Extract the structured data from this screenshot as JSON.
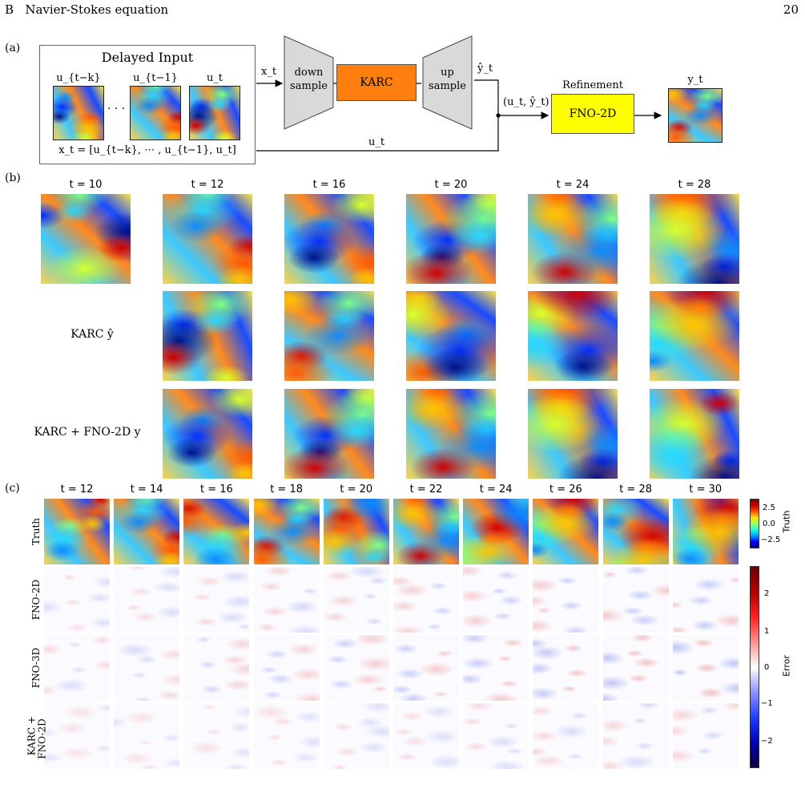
{
  "header": {
    "section": "B   Navier-Stokes equation",
    "page": "20"
  },
  "panel_a": {
    "label": "(a)",
    "delayed_input_title": "Delayed Input",
    "input_labels": [
      "u_{t−k}",
      "u_{t−1}",
      "u_t"
    ],
    "dots": "· · ·",
    "formula": "x_t = [u_{t−k}, ⋯ , u_{t−1}, u_t]",
    "xt_arrow_label": "x_t",
    "down_sample": [
      "down",
      "sample"
    ],
    "karc": "KARC",
    "up_sample": [
      "up",
      "sample"
    ],
    "yhat_label": "ŷ_t",
    "ut_label": "u_t",
    "pair_label": "(u_t, ŷ_t)",
    "refinement": "Refinement",
    "fno2d": "FNO-2D",
    "yt_label": "y_t",
    "colors": {
      "karc": "#ff7f0e",
      "fno": "#ffff00",
      "trapezoid": "#d9d9d9"
    }
  },
  "panel_b": {
    "label": "(b)",
    "times": [
      "t = 10",
      "t = 12",
      "t = 16",
      "t = 20",
      "t = 24",
      "t = 28"
    ],
    "row_labels": [
      "KARC ŷ",
      "KARC + FNO-2D y"
    ]
  },
  "panel_c": {
    "label": "(c)",
    "times": [
      "t = 12",
      "t = 14",
      "t = 16",
      "t = 18",
      "t = 20",
      "t = 22",
      "t = 24",
      "t = 26",
      "t = 28",
      "t = 30"
    ],
    "row_labels": [
      "Truth",
      "FNO-2D",
      "FNO-3D",
      "KARC +\nFNO-2D"
    ],
    "truth_colorbar": {
      "label": "Truth",
      "ticks": [
        "2.5",
        "0.0",
        "−2.5"
      ]
    },
    "error_colorbar": {
      "label": "Error",
      "ticks": [
        "2",
        "1",
        "0",
        "−1",
        "−2"
      ]
    }
  }
}
